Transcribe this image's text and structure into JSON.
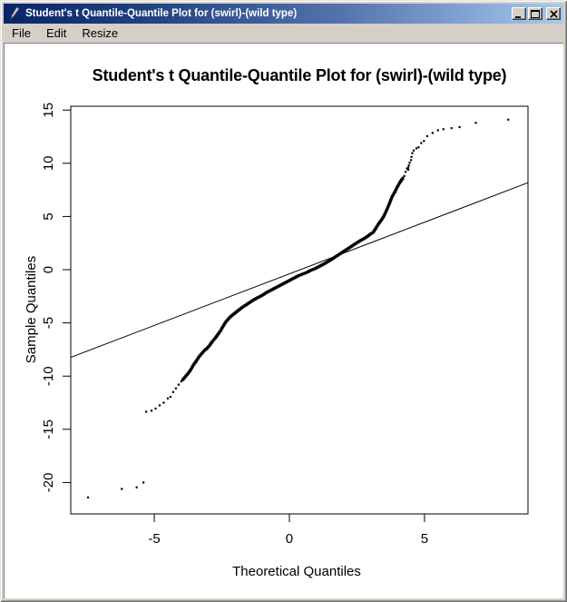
{
  "window": {
    "title": "Student's t Quantile-Quantile Plot for (swirl)-(wild type)",
    "icon": "pen-icon",
    "controls": {
      "minimize": "minimize",
      "maximize": "maximize",
      "close": "close"
    }
  },
  "menu": {
    "items": [
      "File",
      "Edit",
      "Resize"
    ]
  },
  "colors": {
    "titlebar_gradient_start": "#0a246a",
    "titlebar_gradient_end": "#a6caf0",
    "window_face": "#d4d0c8",
    "plot_background": "#ffffff",
    "plot_foreground": "#000000"
  },
  "chart_data": {
    "type": "scatter",
    "title": "Student's t Quantile-Quantile Plot for (swirl)-(wild type)",
    "xlabel": "Theoretical Quantiles",
    "ylabel": "Sample Quantiles",
    "xlim": [
      -8.09,
      8.83
    ],
    "ylim": [
      -22.95,
      15.36
    ],
    "xticks": [
      -5,
      0,
      5
    ],
    "yticks": [
      -20,
      -15,
      -10,
      -5,
      0,
      5,
      10,
      15
    ],
    "grid": false,
    "legend": null,
    "reference_line": {
      "slope": 0.97,
      "intercept": -0.39
    },
    "dense_curve": [
      [
        -3.95,
        -10.35
      ],
      [
        -3.85,
        -10.05
      ],
      [
        -3.75,
        -9.75
      ],
      [
        -3.65,
        -9.4
      ],
      [
        -3.55,
        -8.95
      ],
      [
        -3.45,
        -8.6
      ],
      [
        -3.35,
        -8.2
      ],
      [
        -3.25,
        -7.9
      ],
      [
        -3.15,
        -7.6
      ],
      [
        -3.05,
        -7.4
      ],
      [
        -2.95,
        -7.1
      ],
      [
        -2.85,
        -6.75
      ],
      [
        -2.75,
        -6.45
      ],
      [
        -2.65,
        -6.1
      ],
      [
        -2.55,
        -5.75
      ],
      [
        -2.45,
        -5.3
      ],
      [
        -2.35,
        -4.9
      ],
      [
        -2.25,
        -4.6
      ],
      [
        -2.15,
        -4.35
      ],
      [
        -2.05,
        -4.15
      ],
      [
        -1.95,
        -3.95
      ],
      [
        -1.85,
        -3.75
      ],
      [
        -1.75,
        -3.55
      ],
      [
        -1.6,
        -3.3
      ],
      [
        -1.45,
        -3.05
      ],
      [
        -1.3,
        -2.8
      ],
      [
        -1.15,
        -2.6
      ],
      [
        -1.0,
        -2.4
      ],
      [
        -0.85,
        -2.15
      ],
      [
        -0.7,
        -1.95
      ],
      [
        -0.55,
        -1.75
      ],
      [
        -0.4,
        -1.55
      ],
      [
        -0.25,
        -1.35
      ],
      [
        -0.1,
        -1.15
      ],
      [
        0.05,
        -0.95
      ],
      [
        0.2,
        -0.75
      ],
      [
        0.35,
        -0.55
      ],
      [
        0.5,
        -0.4
      ],
      [
        0.65,
        -0.25
      ],
      [
        0.8,
        -0.05
      ],
      [
        0.95,
        0.1
      ],
      [
        1.1,
        0.3
      ],
      [
        1.25,
        0.5
      ],
      [
        1.4,
        0.72
      ],
      [
        1.55,
        0.95
      ],
      [
        1.7,
        1.2
      ],
      [
        1.85,
        1.45
      ],
      [
        2.0,
        1.7
      ],
      [
        2.15,
        1.95
      ],
      [
        2.3,
        2.2
      ],
      [
        2.45,
        2.45
      ],
      [
        2.6,
        2.7
      ],
      [
        2.75,
        2.9
      ],
      [
        2.9,
        3.15
      ],
      [
        3.0,
        3.35
      ],
      [
        3.1,
        3.5
      ],
      [
        3.2,
        3.9
      ],
      [
        3.3,
        4.3
      ],
      [
        3.4,
        4.65
      ],
      [
        3.5,
        5.05
      ],
      [
        3.6,
        5.6
      ],
      [
        3.7,
        6.2
      ],
      [
        3.8,
        6.85
      ],
      [
        3.9,
        7.3
      ],
      [
        4.0,
        7.8
      ],
      [
        4.1,
        8.25
      ],
      [
        4.2,
        8.6
      ]
    ],
    "points": [
      [
        -7.45,
        -21.4
      ],
      [
        -6.2,
        -20.6
      ],
      [
        -5.65,
        -20.45
      ],
      [
        -5.4,
        -20.0
      ],
      [
        -5.3,
        -13.35
      ],
      [
        -5.1,
        -13.25
      ],
      [
        -4.95,
        -13.05
      ],
      [
        -4.8,
        -12.75
      ],
      [
        -4.65,
        -12.5
      ],
      [
        -4.5,
        -12.1
      ],
      [
        -4.4,
        -11.95
      ],
      [
        -4.3,
        -11.5
      ],
      [
        -4.2,
        -11.15
      ],
      [
        -4.1,
        -10.8
      ],
      [
        -4.0,
        -10.5
      ],
      [
        4.25,
        8.8
      ],
      [
        4.3,
        9.2
      ],
      [
        4.35,
        9.5
      ],
      [
        4.4,
        9.4
      ],
      [
        4.4,
        9.6
      ],
      [
        4.42,
        9.8
      ],
      [
        4.45,
        10.05
      ],
      [
        4.5,
        10.3
      ],
      [
        4.52,
        10.6
      ],
      [
        4.55,
        10.95
      ],
      [
        4.6,
        11.2
      ],
      [
        4.7,
        11.4
      ],
      [
        4.78,
        11.5
      ],
      [
        4.88,
        11.9
      ],
      [
        4.98,
        12.1
      ],
      [
        5.1,
        12.55
      ],
      [
        5.3,
        12.85
      ],
      [
        5.5,
        13.1
      ],
      [
        5.7,
        13.2
      ],
      [
        6.0,
        13.3
      ],
      [
        6.3,
        13.4
      ],
      [
        6.9,
        13.8
      ],
      [
        8.1,
        14.1
      ]
    ]
  }
}
